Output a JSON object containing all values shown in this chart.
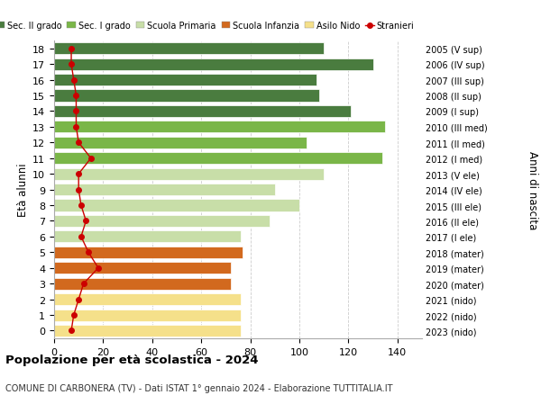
{
  "ages": [
    18,
    17,
    16,
    15,
    14,
    13,
    12,
    11,
    10,
    9,
    8,
    7,
    6,
    5,
    4,
    3,
    2,
    1,
    0
  ],
  "right_labels": [
    "2005 (V sup)",
    "2006 (IV sup)",
    "2007 (III sup)",
    "2008 (II sup)",
    "2009 (I sup)",
    "2010 (III med)",
    "2011 (II med)",
    "2012 (I med)",
    "2013 (V ele)",
    "2014 (IV ele)",
    "2015 (III ele)",
    "2016 (II ele)",
    "2017 (I ele)",
    "2018 (mater)",
    "2019 (mater)",
    "2020 (mater)",
    "2021 (nido)",
    "2022 (nido)",
    "2023 (nido)"
  ],
  "bar_values": [
    110,
    130,
    107,
    108,
    121,
    135,
    103,
    134,
    110,
    90,
    100,
    88,
    76,
    77,
    72,
    72,
    76,
    76,
    76
  ],
  "bar_colors": [
    "#4a7c3f",
    "#4a7c3f",
    "#4a7c3f",
    "#4a7c3f",
    "#4a7c3f",
    "#7ab648",
    "#7ab648",
    "#7ab648",
    "#c8dea8",
    "#c8dea8",
    "#c8dea8",
    "#c8dea8",
    "#c8dea8",
    "#d2691e",
    "#d2691e",
    "#d2691e",
    "#f5e08a",
    "#f5e08a",
    "#f5e08a"
  ],
  "stranieri_values": [
    7,
    7,
    8,
    9,
    9,
    9,
    10,
    15,
    10,
    10,
    11,
    13,
    11,
    14,
    18,
    12,
    10,
    8,
    7
  ],
  "xlim": [
    0,
    150
  ],
  "xticks": [
    0,
    20,
    40,
    60,
    80,
    100,
    120,
    140
  ],
  "ylabel_left": "Età alunni",
  "ylabel_right": "Anni di nascita",
  "title": "Popolazione per età scolastica - 2024",
  "subtitle": "COMUNE DI CARBONERA (TV) - Dati ISTAT 1° gennaio 2024 - Elaborazione TUTTITALIA.IT",
  "legend_labels": [
    "Sec. II grado",
    "Sec. I grado",
    "Scuola Primaria",
    "Scuola Infanzia",
    "Asilo Nido",
    "Stranieri"
  ],
  "legend_colors": [
    "#4a7c3f",
    "#7ab648",
    "#c8dea8",
    "#d2691e",
    "#f5e08a",
    "#cc0000"
  ],
  "stranieri_color": "#cc0000",
  "background_color": "#ffffff",
  "grid_color": "#cccccc"
}
